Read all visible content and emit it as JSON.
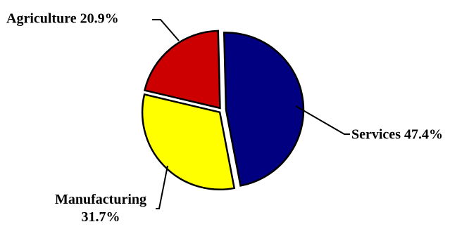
{
  "chart_data": {
    "type": "pie",
    "title": "",
    "legend": "none",
    "slices": [
      {
        "label": "Services",
        "value": 47.4,
        "display": "Services 47.4%",
        "color": "#000080"
      },
      {
        "label": "Manufacturing",
        "value": 31.7,
        "display_lines": [
          "Manufacturing",
          "31.7%"
        ],
        "color": "#ffff00"
      },
      {
        "label": "Agriculture",
        "value": 20.9,
        "display": "Agriculture 20.9%",
        "color": "#cc0000"
      }
    ]
  }
}
